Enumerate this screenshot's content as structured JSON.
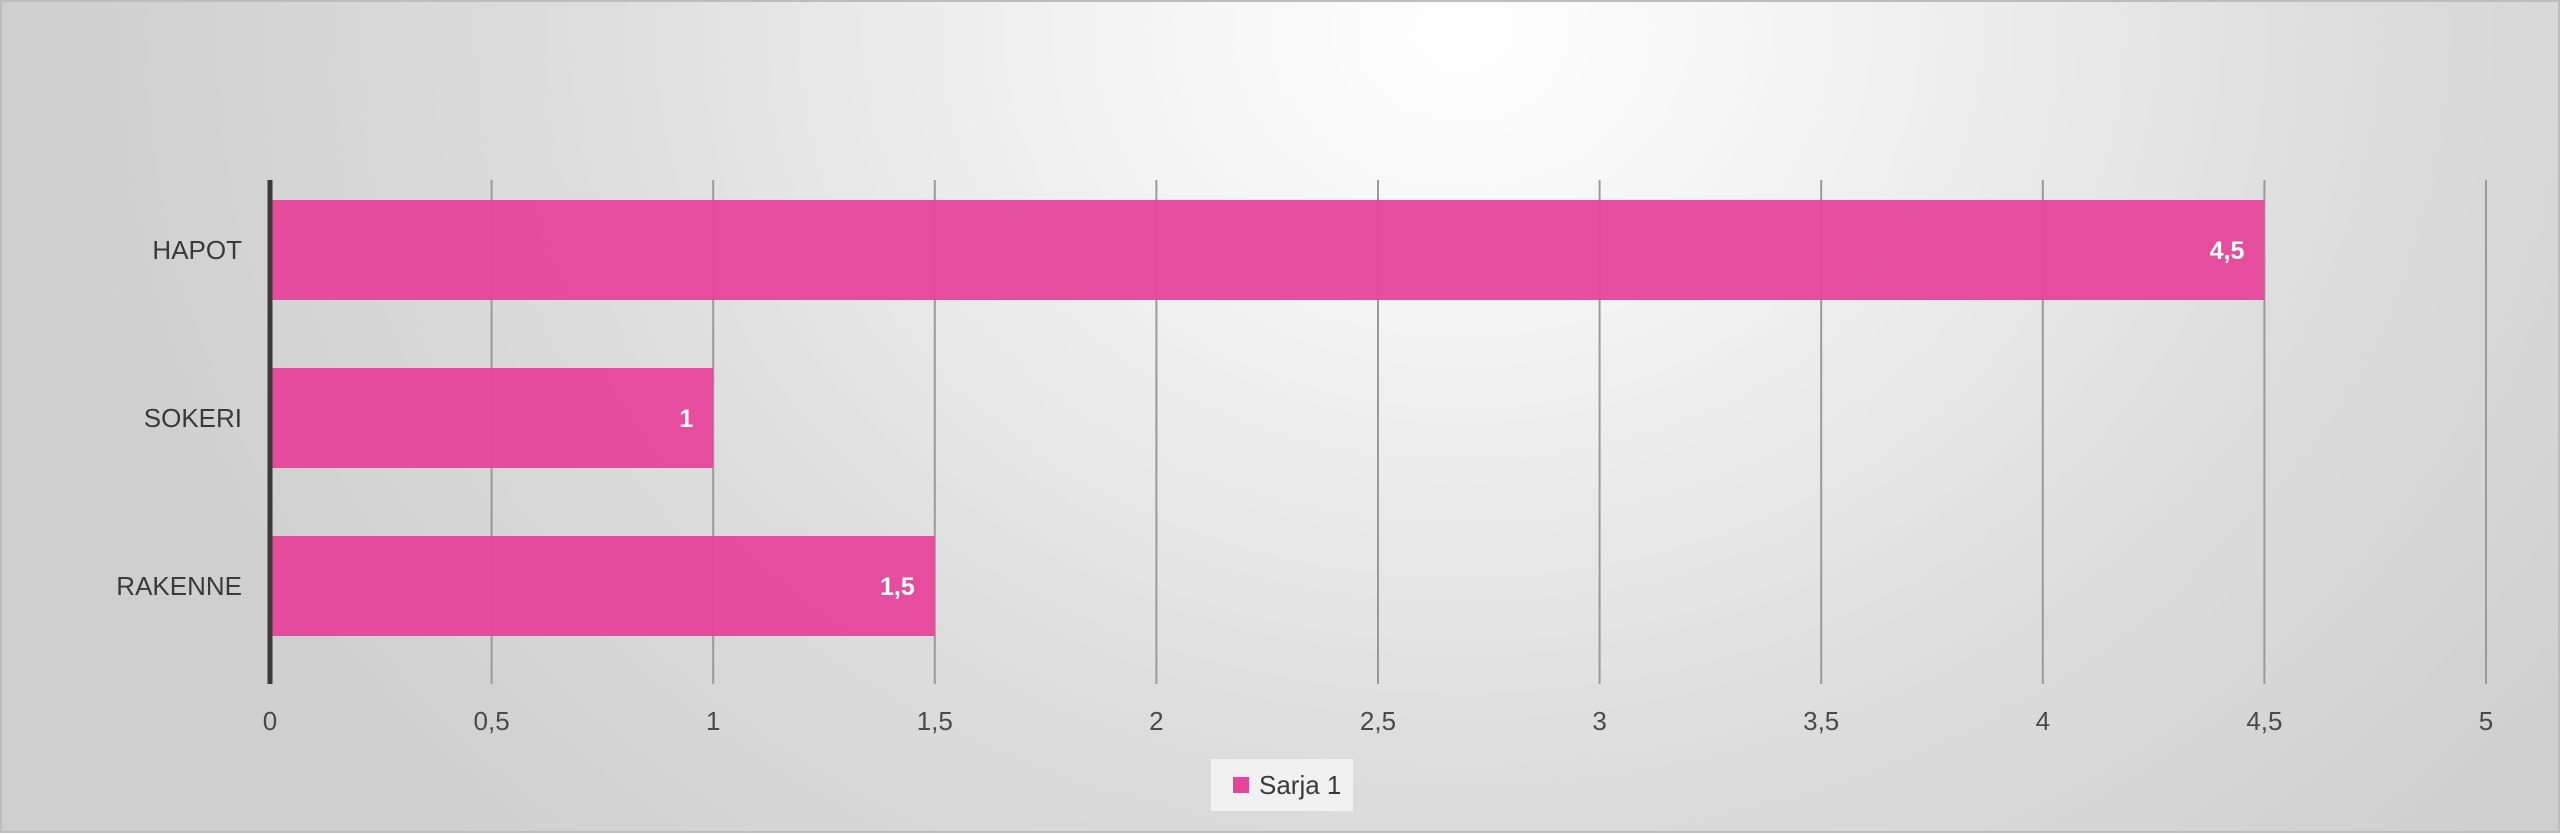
{
  "chart_data": {
    "type": "bar",
    "orientation": "horizontal",
    "categories": [
      "HAPOT",
      "SOKERI",
      "RAKENNE"
    ],
    "series": [
      {
        "name": "Sarja 1",
        "values": [
          4.5,
          1,
          1.5
        ],
        "data_labels": [
          "4,5",
          "1",
          "1,5"
        ]
      }
    ],
    "xlim": [
      0,
      5
    ],
    "x_ticks": [
      0,
      0.5,
      1,
      1.5,
      2,
      2.5,
      3,
      3.5,
      4,
      4.5,
      5
    ],
    "x_tick_labels": [
      "0",
      "0,5",
      "1",
      "1,5",
      "2",
      "2,5",
      "3",
      "3,5",
      "4",
      "4,5",
      "5"
    ],
    "grid": true,
    "legend_position": "bottom",
    "colors": {
      "bar": "#e6449a"
    }
  }
}
